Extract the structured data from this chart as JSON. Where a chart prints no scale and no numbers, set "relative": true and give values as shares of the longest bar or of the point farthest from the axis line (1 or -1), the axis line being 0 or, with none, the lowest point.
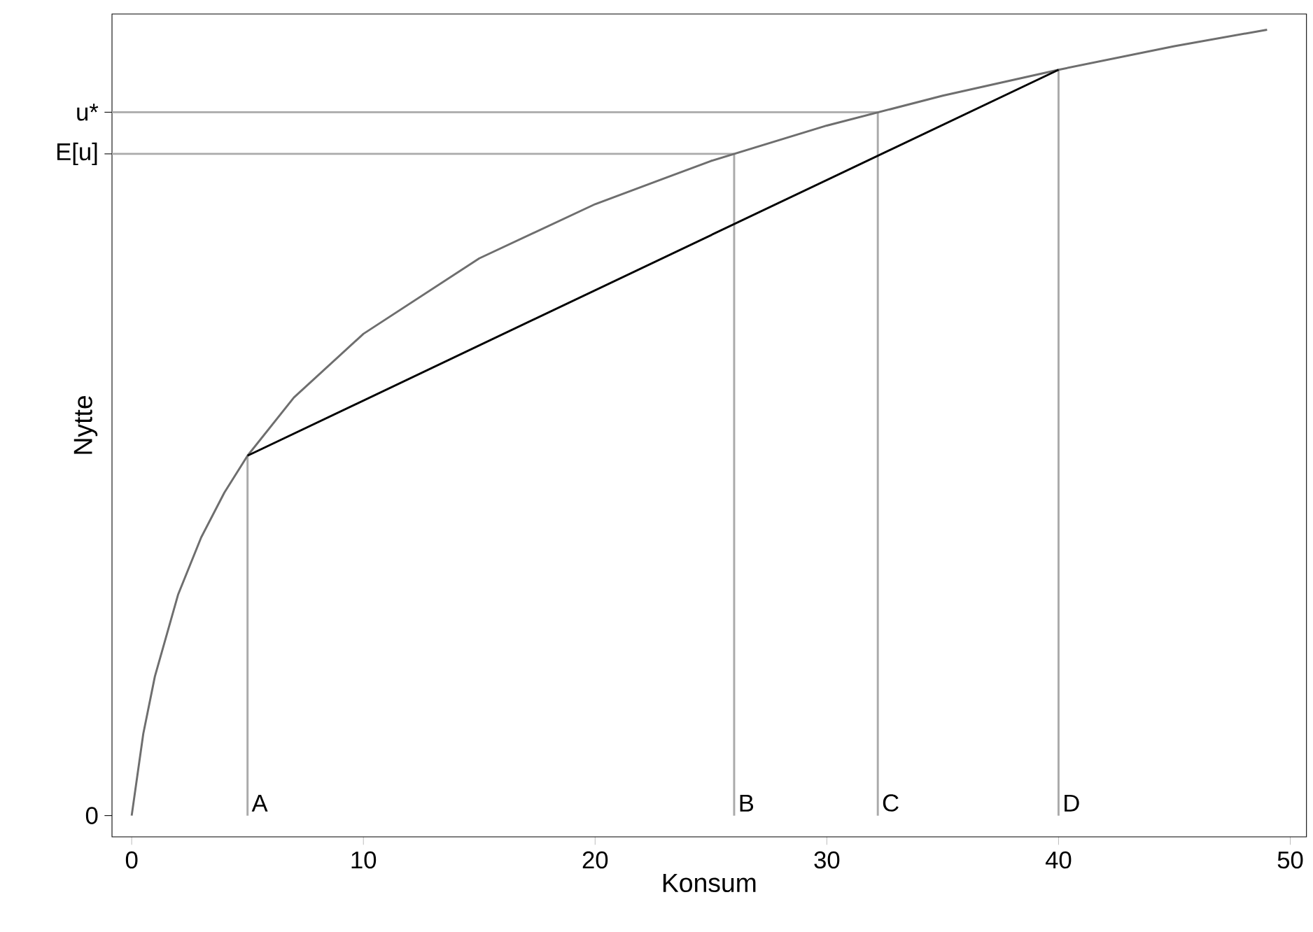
{
  "chart_data": {
    "type": "line",
    "xlabel": "Konsum",
    "ylabel": "Nytte",
    "xlim": [
      -0.85,
      50.7
    ],
    "relative": true,
    "xticks": [
      0,
      10,
      20,
      30,
      40,
      50
    ],
    "series": [
      {
        "color": "#aaaaaa",
        "x": [
          5,
          5
        ],
        "values": [
          0,
          0.458
        ]
      },
      {
        "color": "#aaaaaa",
        "x": [
          26,
          26
        ],
        "values": [
          0,
          0.842
        ]
      },
      {
        "color": "#aaaaaa",
        "x": [
          32.2,
          32.2
        ],
        "values": [
          0,
          0.895
        ]
      },
      {
        "color": "#aaaaaa",
        "x": [
          40,
          40
        ],
        "values": [
          0,
          0.949
        ]
      },
      {
        "color": "#aaaaaa",
        "x": [
          -0.85,
          26
        ],
        "values": [
          0.842,
          0.842
        ]
      },
      {
        "color": "#aaaaaa",
        "x": [
          -0.85,
          32.2
        ],
        "values": [
          0.895,
          0.895
        ]
      },
      {
        "color": "#6e6e6e",
        "x": [
          0,
          0.5,
          1,
          2,
          3,
          4,
          5,
          7,
          10,
          15,
          20,
          25,
          30,
          35,
          40,
          45,
          49
        ],
        "values": [
          0,
          0.104,
          0.177,
          0.281,
          0.354,
          0.411,
          0.458,
          0.532,
          0.613,
          0.709,
          0.778,
          0.833,
          0.878,
          0.916,
          0.949,
          0.979,
          1.0
        ]
      },
      {
        "color": "#000000",
        "x": [
          5,
          40
        ],
        "values": [
          0.458,
          0.949
        ]
      }
    ],
    "annotations": [
      "0",
      {
        "text": "E[u]",
        "x": -0.85,
        "y": 0.842
      },
      {
        "text": "u*",
        "x": -0.85,
        "y": 0.895
      },
      {
        "text": "A",
        "x": 5,
        "y": 0
      },
      {
        "text": "B",
        "x": 26,
        "y": 0
      },
      {
        "text": "C",
        "x": 32.2,
        "y": 0
      },
      {
        "text": "D",
        "x": 40,
        "y": 0
      }
    ]
  }
}
